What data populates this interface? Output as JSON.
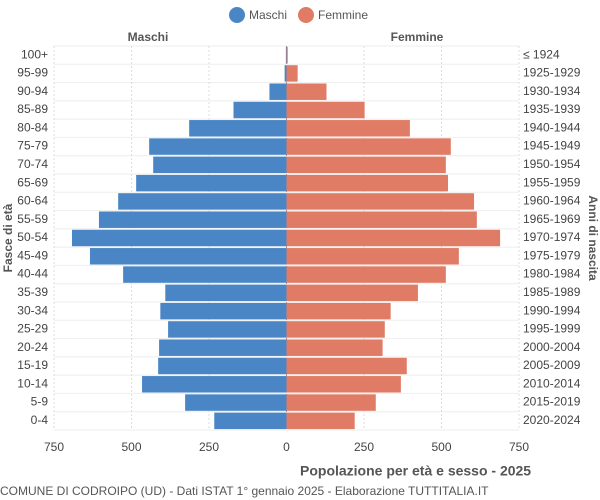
{
  "chart_data": {
    "type": "pyramid",
    "title": "Popolazione per età e sesso - 2025",
    "subtitle": "COMUNE DI CODROIPO (UD) - Dati ISTAT 1° gennaio 2025 - Elaborazione TUTTITALIA.IT",
    "y_label": "Fasce di età",
    "y2_label": "Anni di nascita",
    "categories": [
      "100+",
      "95-99",
      "90-94",
      "85-89",
      "80-84",
      "75-79",
      "70-74",
      "65-69",
      "60-64",
      "55-59",
      "50-54",
      "45-49",
      "40-44",
      "35-39",
      "30-34",
      "25-29",
      "20-24",
      "15-19",
      "10-14",
      "5-9",
      "0-4"
    ],
    "birth_years": [
      "≤ 1924",
      "1925-1929",
      "1930-1934",
      "1935-1939",
      "1940-1944",
      "1945-1949",
      "1950-1954",
      "1955-1959",
      "1960-1964",
      "1965-1969",
      "1970-1974",
      "1975-1979",
      "1980-1984",
      "1985-1989",
      "1990-1994",
      "1995-1999",
      "2000-2004",
      "2005-2009",
      "2010-2014",
      "2015-2019",
      "2020-2024"
    ],
    "series": [
      {
        "name": "Maschi",
        "color": "#4a86c5",
        "values": [
          2,
          6,
          55,
          171,
          314,
          443,
          430,
          485,
          543,
          605,
          692,
          634,
          527,
          391,
          407,
          382,
          411,
          414,
          466,
          327,
          233
        ]
      },
      {
        "name": "Femmine",
        "color": "#e07b65",
        "values": [
          4,
          36,
          129,
          252,
          398,
          530,
          514,
          521,
          605,
          614,
          689,
          556,
          514,
          424,
          336,
          317,
          310,
          388,
          369,
          288,
          220
        ]
      }
    ],
    "xlim": [
      -750,
      750
    ],
    "xticks": [
      {
        "value": -750,
        "label": "750"
      },
      {
        "value": -500,
        "label": "500"
      },
      {
        "value": -250,
        "label": "250"
      },
      0,
      250,
      500,
      750
    ],
    "grid": true
  }
}
